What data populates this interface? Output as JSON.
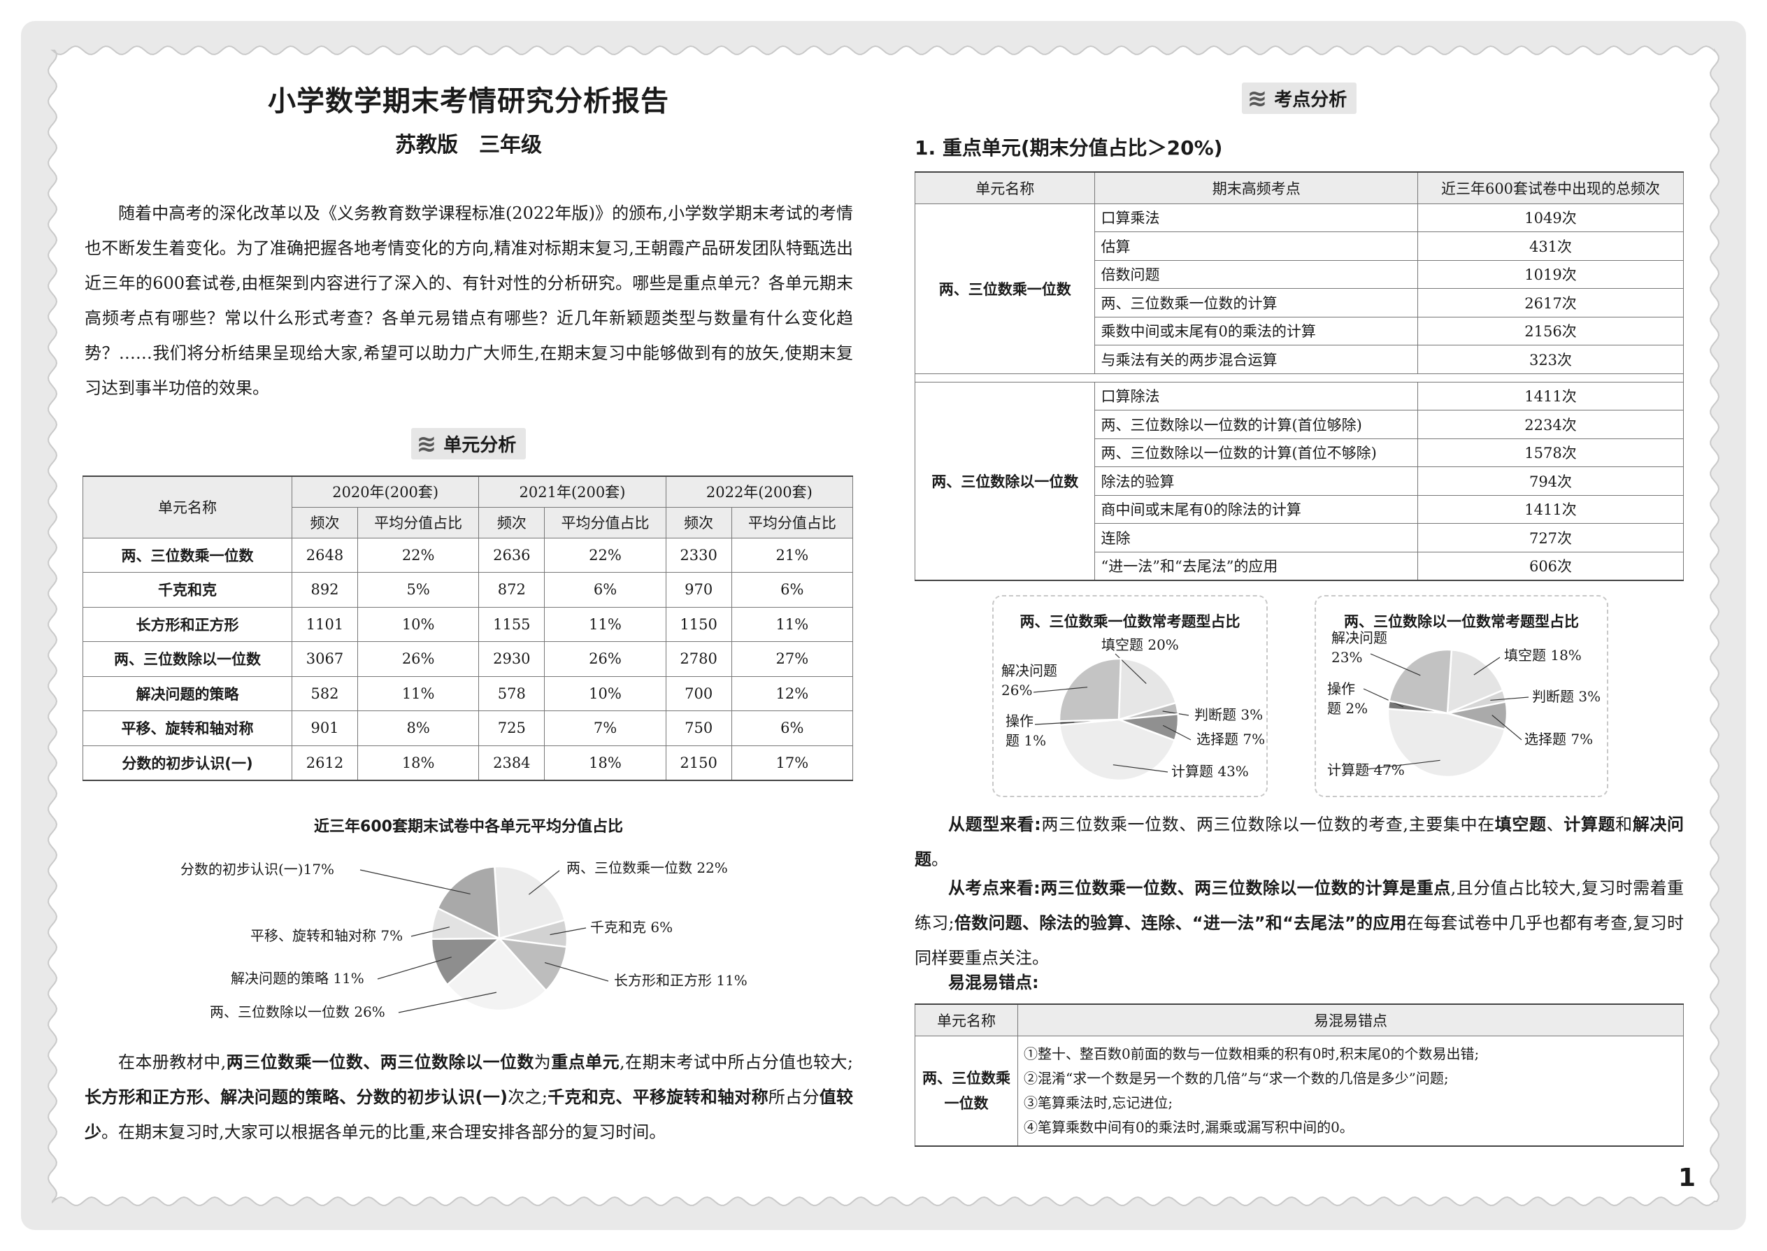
{
  "left": {
    "title": "小学数学期末考情研究分析报告",
    "subtitle": "苏教版　三年级",
    "intro": [
      {
        "t": "随着中高考的深化改革以及《义务教育数学课程标准(2022年版)》的颁布,小学数学期末考试的考情也不断发生着变化。为了准确把握各地考情变化的方向,精准对标期末复习,王朝霞产品研发团队特甄选出近三年的600套试卷,由框架到内容进行了深入的、有针对性的分析研究。哪些是重点单元？各单元期末高频考点有哪些？常以什么形式考查？各单元易错点有哪些？近几年新颖题类型与数量有什么变化趋势？……我们将分析结果呈现给大家,希望可以助力广大师生,在期末复习中能够做到有的放矢,使期末复习达到事半功倍的效果。",
        "b": false
      }
    ],
    "section_title": "单元分析",
    "unit_table": {
      "col_unit": "单元名称",
      "years": [
        "2020年(200套)",
        "2021年(200套)",
        "2022年(200套)"
      ],
      "sub_freq": "频次",
      "sub_ratio": "平均分值占比",
      "rows": [
        {
          "name": "两、三位数乘一位数",
          "v": [
            "2648",
            "22%",
            "2636",
            "22%",
            "2330",
            "21%"
          ]
        },
        {
          "name": "千克和克",
          "v": [
            "892",
            "5%",
            "872",
            "6%",
            "970",
            "6%"
          ]
        },
        {
          "name": "长方形和正方形",
          "v": [
            "1101",
            "10%",
            "1155",
            "11%",
            "1150",
            "11%"
          ]
        },
        {
          "name": "两、三位数除以一位数",
          "v": [
            "3067",
            "26%",
            "2930",
            "26%",
            "2780",
            "27%"
          ]
        },
        {
          "name": "解决问题的策略",
          "v": [
            "582",
            "11%",
            "578",
            "10%",
            "700",
            "12%"
          ]
        },
        {
          "name": "平移、旋转和轴对称",
          "v": [
            "901",
            "8%",
            "725",
            "7%",
            "750",
            "6%"
          ]
        },
        {
          "name": "分数的初步认识(一)",
          "v": [
            "2612",
            "18%",
            "2384",
            "18%",
            "2150",
            "17%"
          ]
        }
      ]
    },
    "conclusion": [
      {
        "t": "在本册教材中,",
        "b": false
      },
      {
        "t": "两三位数乘一位数、两三位数除以一位数",
        "b": true
      },
      {
        "t": "为",
        "b": false
      },
      {
        "t": "重点单元",
        "b": true
      },
      {
        "t": ",在期末考试中所占分值也较大;",
        "b": false
      },
      {
        "t": "长方形和正方形、解决问题的策略、分数的初步认识(一)",
        "b": true
      },
      {
        "t": "次之;",
        "b": false
      },
      {
        "t": "千克和克、平移旋转和轴对称",
        "b": true
      },
      {
        "t": "所占分",
        "b": false
      },
      {
        "t": "值较少",
        "b": true
      },
      {
        "t": "。在期末复习时,大家可以根据各单元的比重,来合理安排各部分的复习时间。",
        "b": false
      }
    ]
  },
  "right": {
    "section_title": "考点分析",
    "heading": "1. 重点单元(期末分值占比＞20%)",
    "kp_table": {
      "headers": [
        "单元名称",
        "期末高频考点",
        "近三年600套试卷中出现的总频次"
      ],
      "groups": [
        {
          "unit": "两、三位数乘一位数",
          "items": [
            [
              "口算乘法",
              "1049次"
            ],
            [
              "估算",
              "431次"
            ],
            [
              "倍数问题",
              "1019次"
            ],
            [
              "两、三位数乘一位数的计算",
              "2617次"
            ],
            [
              "乘数中间或末尾有0的乘法的计算",
              "2156次"
            ],
            [
              "与乘法有关的两步混合运算",
              "323次"
            ]
          ]
        },
        {
          "unit": "两、三位数除以一位数",
          "items": [
            [
              "口算除法",
              "1411次"
            ],
            [
              "两、三位数除以一位数的计算(首位够除)",
              "2234次"
            ],
            [
              "两、三位数除以一位数的计算(首位不够除)",
              "1578次"
            ],
            [
              "除法的验算",
              "794次"
            ],
            [
              "商中间或末尾有0的除法的计算",
              "1411次"
            ],
            [
              "连除",
              "727次"
            ],
            [
              "“进一法”和“去尾法”的应用",
              "606次"
            ]
          ]
        }
      ]
    },
    "para_type": [
      {
        "t": "从题型来看:",
        "b": true
      },
      {
        "t": "两三位数乘一位数、两三位数除以一位数的考查,主要集中在",
        "b": false
      },
      {
        "t": "填空题",
        "b": true
      },
      {
        "t": "、",
        "b": false
      },
      {
        "t": "计算题",
        "b": true
      },
      {
        "t": "和",
        "b": false
      },
      {
        "t": "解决问题",
        "b": true
      },
      {
        "t": "。",
        "b": false
      }
    ],
    "para_point": [
      {
        "t": "从考点来看:",
        "b": true
      },
      {
        "t": "两三位数乘一位数、两三位数除以一位数的计算是重点",
        "b": true
      },
      {
        "t": ",且分值占比较大,复习时需着重练习;",
        "b": false
      },
      {
        "t": "倍数问题、除法的验算、连除、“进一法”和“去尾法”的应用",
        "b": true
      },
      {
        "t": "在每套试卷中几乎也都有考查,复习时同样要重点关注。",
        "b": false
      }
    ],
    "mistakes_label": "易混易错点:",
    "mistake_table": {
      "headers": [
        "单元名称",
        "易混易错点"
      ],
      "unit": "两、三位数乘一位数",
      "items": [
        "①整十、整百数0前面的数与一位数相乘的积有0时,积末尾0的个数易出错;",
        "②混淆“求一个数是另一个数的几倍”与“求一个数的几倍是多少”问题;",
        "③笔算乘法时,忘记进位;",
        "④笔算乘数中间有0的乘法时,漏乘或漏写积中间的0。"
      ]
    },
    "page_number": "1"
  },
  "chart_data": [
    {
      "type": "pie",
      "title": "近三年600套期末试卷中各单元平均分值占比",
      "labels": [
        "两、三位数乘一位数",
        "千克和克",
        "长方形和正方形",
        "两、三位数除以一位数",
        "解决问题的策略",
        "平移、旋转和轴对称",
        "分数的初步认识(一)"
      ],
      "values": [
        22,
        6,
        11,
        26,
        11,
        7,
        17
      ],
      "display": [
        "两、三位数乘一位数 22%",
        "千克和克 6%",
        "长方形和正方形 11%",
        "两、三位数除以一位数 26%",
        "解决问题的策略 11%",
        "平移、旋转和轴对称 7%",
        "分数的初步认识(一)17%"
      ],
      "colors": [
        "#ececec",
        "#d2d2d2",
        "#bdbdbd",
        "#f3f3f3",
        "#8e8e8e",
        "#e2e2e2",
        "#a9a9a9"
      ]
    },
    {
      "type": "pie",
      "title": "两、三位数乘一位数常考题型占比",
      "labels": [
        "填空题",
        "判断题",
        "选择题",
        "计算题",
        "操作题",
        "解决问题"
      ],
      "values": [
        20,
        3,
        7,
        43,
        1,
        26
      ],
      "display": [
        "填空题 20%",
        "判断题 3%",
        "选择题 7%",
        "计算题 43%",
        "操作|题 1%",
        "解决问题|26%"
      ],
      "colors": [
        "#e6e6e6",
        "#bdbdbd",
        "#909090",
        "#ededed",
        "#777777",
        "#c4c4c4"
      ]
    },
    {
      "type": "pie",
      "title": "两、三位数除以一位数常考题型占比",
      "labels": [
        "填空题",
        "判断题",
        "选择题",
        "计算题",
        "操作题",
        "解决问题"
      ],
      "values": [
        18,
        3,
        7,
        47,
        2,
        23
      ],
      "display": [
        "填空题 18%",
        "判断题 3%",
        "选择题 7%",
        "计算题 47%",
        "操作|题 2%",
        "解决问题|23%"
      ],
      "colors": [
        "#e4e4e4",
        "#d6d6d6",
        "#aaaaaa",
        "#ececec",
        "#777777",
        "#c2c2c2"
      ]
    }
  ]
}
